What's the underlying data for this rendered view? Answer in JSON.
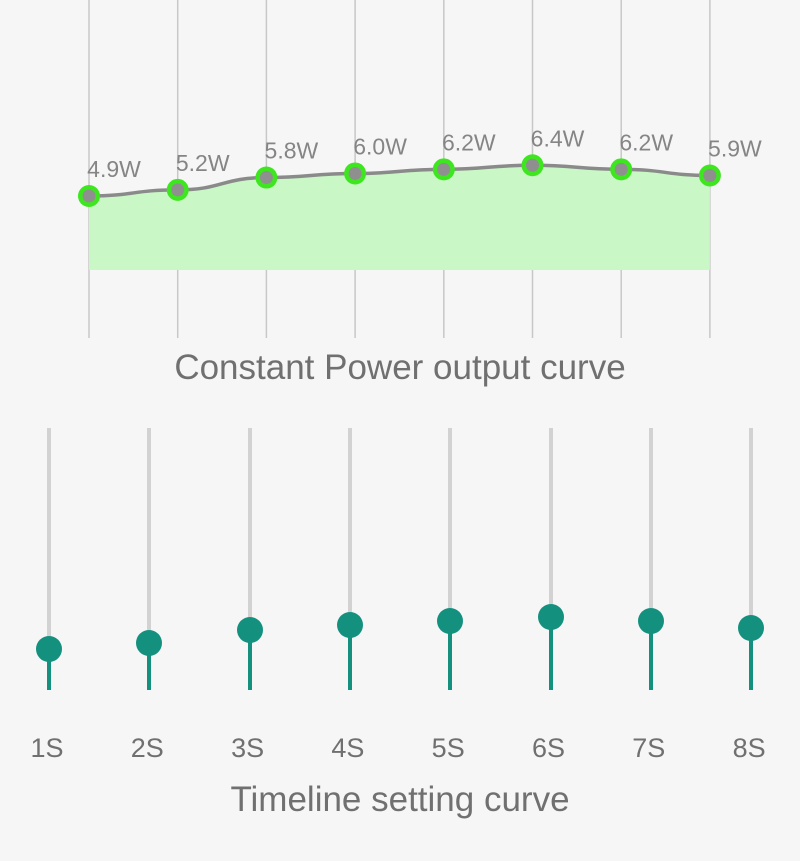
{
  "power_chart": {
    "title": "Constant Power output curve",
    "unit": "W",
    "values": [
      4.9,
      5.2,
      5.8,
      6.0,
      6.2,
      6.4,
      6.2,
      5.9
    ],
    "labels": [
      "4.9W",
      "5.2W",
      "5.8W",
      "6.0W",
      "6.2W",
      "6.4W",
      "6.2W",
      "5.9W"
    ],
    "colors": {
      "line": "#8a8a8a",
      "fill": "#c9f7c5",
      "point_ring": "#3ee620",
      "point_core": "#8f8f8f",
      "grid": "#c8c8c8",
      "label": "#858585"
    }
  },
  "timeline": {
    "title": "Timeline setting curve",
    "steps": [
      {
        "label": "1S",
        "value": 4.9
      },
      {
        "label": "2S",
        "value": 5.2
      },
      {
        "label": "3S",
        "value": 5.8
      },
      {
        "label": "4S",
        "value": 6.0
      },
      {
        "label": "5S",
        "value": 6.2
      },
      {
        "label": "6S",
        "value": 6.4
      },
      {
        "label": "7S",
        "value": 6.2
      },
      {
        "label": "8S",
        "value": 5.9
      }
    ],
    "colors": {
      "active": "#14907f",
      "track": "#d2d2d2"
    }
  }
}
